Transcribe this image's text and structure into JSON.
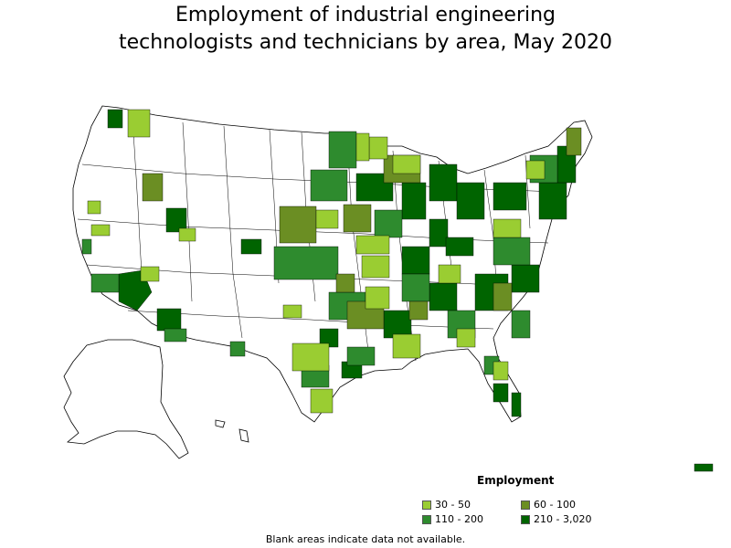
{
  "title_line1": "Employment of industrial engineering",
  "title_line2": "technologists and technicians by area, May 2020",
  "legend": {
    "title": "Employment",
    "items": [
      {
        "label": "30 - 50",
        "color": "#9acd32"
      },
      {
        "label": "60 - 100",
        "color": "#6b8e23"
      },
      {
        "label": "110 - 200",
        "color": "#2e8b2e"
      },
      {
        "label": "210 - 3,020",
        "color": "#006400"
      }
    ]
  },
  "footnote": "Blank areas indicate data not available.",
  "colors": {
    "no_data": "#ffffff",
    "border": "#000000"
  }
}
